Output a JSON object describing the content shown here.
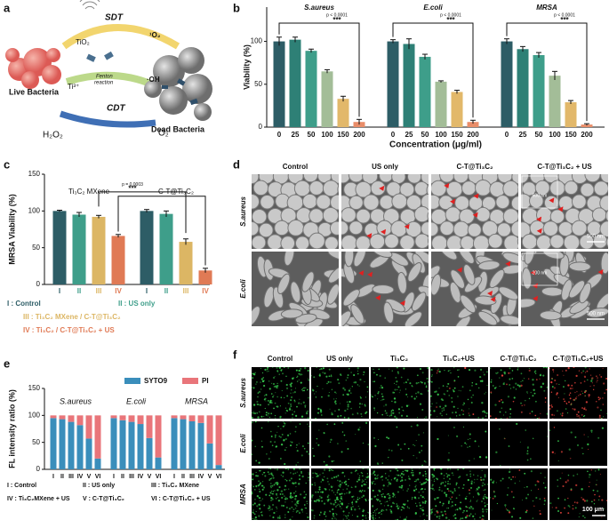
{
  "panel_labels": [
    "a",
    "b",
    "c",
    "d",
    "e",
    "f"
  ],
  "scheme": {
    "sdt": "SDT",
    "tio2": "TiO₂",
    "singlet_oxygen": "¹O₂",
    "fenton": [
      "Fenton",
      "reaction"
    ],
    "hydroxyl": "·OH",
    "ti3": "Ti³⁺",
    "cdt": "CDT",
    "h2o2": "H₂O₂",
    "o2": "O₂",
    "live": "Live Bacteria",
    "dead": "Dead Bacteria"
  },
  "chart_data": [
    {
      "type": "bar",
      "y_label": "Viability (%)",
      "x_label": "Concentration (μg/ml)",
      "categories": [
        "0",
        "25",
        "50",
        "100",
        "150",
        "200"
      ],
      "colors": [
        "#2d5d66",
        "#2e8076",
        "#3e9e8a",
        "#a3bd98",
        "#e2b86a",
        "#e98d69"
      ],
      "groups": [
        {
          "name": "S.aureus",
          "values": [
            100,
            102,
            89,
            65,
            33,
            6
          ],
          "errors": [
            5,
            3,
            2,
            2,
            3,
            3
          ],
          "p_label": "p < 0.0001",
          "significance": "***"
        },
        {
          "name": "E.coli",
          "values": [
            100,
            97,
            82,
            53,
            41,
            6
          ],
          "errors": [
            2,
            6,
            3,
            1,
            2,
            2
          ],
          "p_label": "p < 0.0001",
          "significance": "***"
        },
        {
          "name": "MRSA",
          "values": [
            100,
            91,
            84,
            60,
            29,
            3
          ],
          "errors": [
            3,
            3,
            3,
            5,
            2,
            1
          ],
          "p_label": "p < 0.0001",
          "significance": "***"
        }
      ],
      "ylim": [
        0,
        140
      ],
      "yticks": [
        0,
        50,
        100
      ]
    },
    {
      "type": "bar",
      "y_label": "MRSA Viability (%)",
      "categories": [
        "I",
        "II",
        "III",
        "IV"
      ],
      "colors": [
        "#2d5d66",
        "#3e9e8a",
        "#dcb664",
        "#e07a55"
      ],
      "groups": [
        {
          "name": "Ti₃C₂ MXene",
          "values": [
            100,
            95,
            92,
            66
          ],
          "errors": [
            1,
            3,
            2,
            2
          ]
        },
        {
          "name": "C-T@Ti₃C₂",
          "values": [
            100,
            96,
            58,
            19
          ],
          "errors": [
            2,
            4,
            4,
            3
          ]
        }
      ],
      "annotation": {
        "p_label": "p = 0.0003",
        "significance": "***"
      },
      "legend": [
        "I : Control",
        "II : US only",
        "III : Ti₃C₂ MXene / C-T@Ti₃C₂",
        "IV : Ti₃C₂ / C-T@Ti₃C₂ + US"
      ],
      "ylim": [
        0,
        150
      ],
      "yticks": [
        0,
        50,
        100,
        150
      ]
    },
    {
      "type": "stacked_bar",
      "y_label": "FL intensity ratio (%)",
      "groups": [
        "S.aureus",
        "E.coli",
        "MRSA"
      ],
      "categories": [
        "I",
        "II",
        "III",
        "IV",
        "V",
        "VI"
      ],
      "series": [
        {
          "name": "SYTO9",
          "color": "#3a8ebb",
          "values": [
            [
              95,
              93,
              88,
              82,
              57,
              20
            ],
            [
              95,
              91,
              88,
              84,
              58,
              22
            ],
            [
              95,
              93,
              89,
              86,
              48,
              8
            ]
          ]
        },
        {
          "name": "PI",
          "color": "#e9757a",
          "values": [
            [
              5,
              7,
              12,
              18,
              43,
              80
            ],
            [
              5,
              9,
              12,
              16,
              42,
              78
            ],
            [
              5,
              7,
              11,
              14,
              52,
              92
            ]
          ]
        }
      ],
      "legend": [
        "I : Control",
        "II : US only",
        "III : Ti₃C₂ MXene",
        "IV : Ti₃C₂MXene + US",
        "V : C-T@Ti₃C₂",
        "VI : C-T@Ti₃C₂ + US"
      ],
      "ylim": [
        0,
        150
      ],
      "yticks": [
        0,
        50,
        100,
        150
      ]
    }
  ],
  "sem": {
    "columns": [
      "Control",
      "US only",
      "C-T@Ti₃C₂",
      "C-T@Ti₃C₂ + US"
    ],
    "rows": [
      "S.aureus",
      "E.coli"
    ],
    "scale_bars": [
      "500 nm",
      "500 nm"
    ],
    "insets": [
      "500 nm",
      "200 nm"
    ]
  },
  "fluorescence": {
    "columns": [
      "Control",
      "US only",
      "Ti₃C₂",
      "Ti₃C₂+US",
      "C-T@Ti₃C₂",
      "C-T@Ti₃C₂+US"
    ],
    "rows": [
      "S.aureus",
      "E.coli",
      "MRSA"
    ],
    "scale_bar": "100 μm"
  }
}
